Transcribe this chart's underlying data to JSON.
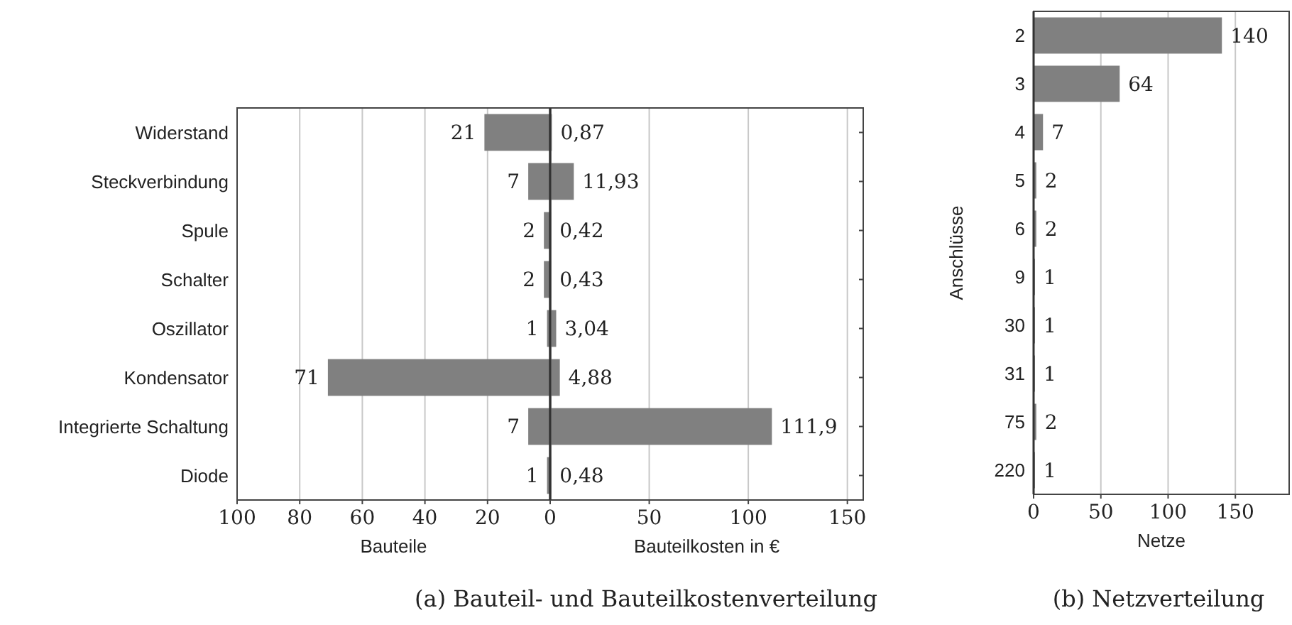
{
  "chart_data": [
    {
      "type": "bar",
      "orientation": "horizontal",
      "categories": [
        "Widerstand",
        "Steckverbindung",
        "Spule",
        "Schalter",
        "Oszillator",
        "Kondensator",
        "Integrierte Schaltung",
        "Diode"
      ],
      "values": [
        21,
        7,
        2,
        2,
        1,
        71,
        7,
        1
      ],
      "color": "#808080",
      "xlim": [
        100,
        0
      ],
      "xticks": [
        100,
        80,
        60,
        40,
        20,
        0
      ],
      "xlabel": "Bauteile",
      "grid": "x",
      "data_labels": true,
      "annotations": [
        "(a) Bauteil- und Bauteilkostenverteilung"
      ]
    },
    {
      "type": "bar",
      "orientation": "horizontal",
      "categories": [
        null,
        null,
        null,
        null,
        null,
        null,
        null,
        null
      ],
      "values": [
        0.87,
        11.93,
        0.42,
        0.43,
        3.04,
        4.88,
        111.9,
        0.48
      ],
      "value_labels": [
        "0,87",
        "11,93",
        "0,42",
        "0,43",
        "3,04",
        "4,88",
        "111,9",
        "0,48"
      ],
      "color": "#808080",
      "xlim": [
        0,
        158
      ],
      "xticks": [
        {
          "value": 0,
          "label": null
        },
        50,
        100,
        150
      ],
      "xlabel": "Bauteilkosten in €",
      "grid": "x",
      "tick_labels": "x"
    },
    {
      "type": "bar",
      "orientation": "horizontal",
      "categories": [
        "2",
        "3",
        "4",
        "5",
        "6",
        "9",
        "30",
        "31",
        "75",
        "220"
      ],
      "values": [
        140,
        64,
        7,
        2,
        2,
        1,
        1,
        1,
        2,
        1
      ],
      "color": "#808080",
      "xlim": [
        0,
        190
      ],
      "xticks": [
        0,
        50,
        100,
        150
      ],
      "xlabel": "Netze",
      "ylabel": "Anschlüsse",
      "grid": "x",
      "data_labels": true,
      "annotations": [
        "(b) Netzverteilung"
      ]
    }
  ]
}
